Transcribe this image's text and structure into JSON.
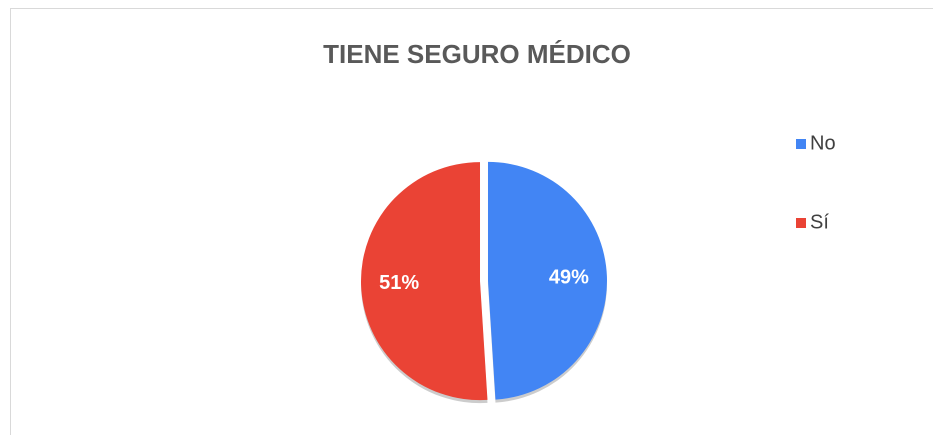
{
  "chart_data": {
    "type": "pie",
    "title": "TIENE SEGURO MÉDICO",
    "categories": [
      "No",
      "Sí"
    ],
    "values": [
      49,
      51
    ],
    "value_labels": [
      "49%",
      "51%"
    ],
    "colors": [
      "#4285f4",
      "#ea4335"
    ],
    "legend": "right"
  }
}
